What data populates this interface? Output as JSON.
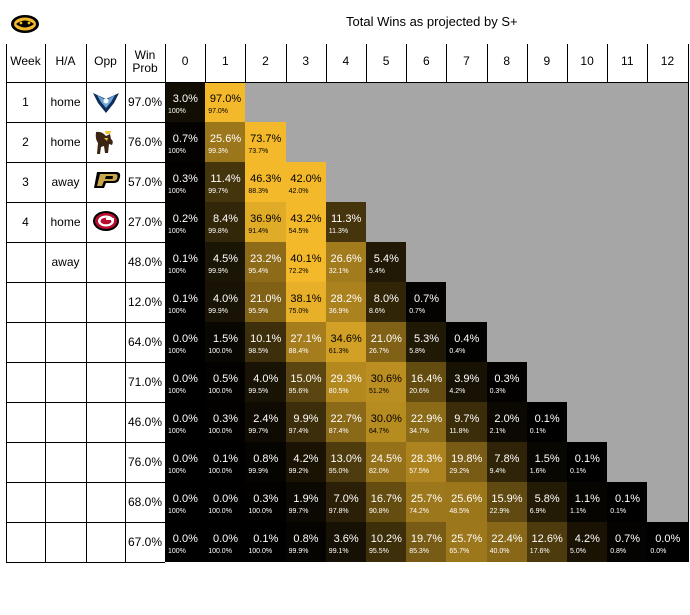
{
  "title": "Total Wins as projected by S+",
  "logo_icon": "mizzou-tiger-logo-icon",
  "colors": {
    "max": "#f3b92a",
    "min": "#000000",
    "gray": "#a6a6a6",
    "border": "#000000"
  },
  "headers": {
    "week": "Week",
    "ha": "H/A",
    "opp": "Opp",
    "winprob": [
      "Win",
      "Prob"
    ]
  },
  "win_counts": [
    "0",
    "1",
    "2",
    "3",
    "4",
    "5",
    "6",
    "7",
    "8",
    "9",
    "10",
    "11",
    "12"
  ],
  "chart_data": {
    "type": "heatmap",
    "title": "Total Wins as projected by S+",
    "x": [
      0,
      1,
      2,
      3,
      4,
      5,
      6,
      7,
      8,
      9,
      10,
      11,
      12
    ],
    "rows": [
      {
        "week": "1",
        "ha": "home",
        "opp_icon": "ut-martin-skyhawks-logo-icon",
        "win_prob": "97.0%",
        "dist": [
          "3.0%",
          "97.0%"
        ],
        "cum": [
          "100%",
          "97.0%"
        ]
      },
      {
        "week": "2",
        "ha": "home",
        "opp_icon": "wyoming-cowboys-logo-icon",
        "win_prob": "76.0%",
        "dist": [
          "0.7%",
          "25.6%",
          "73.7%"
        ],
        "cum": [
          "100%",
          "99.3%",
          "73.7%"
        ]
      },
      {
        "week": "3",
        "ha": "away",
        "opp_icon": "purdue-p-logo-icon",
        "win_prob": "57.0%",
        "dist": [
          "0.3%",
          "11.4%",
          "46.3%",
          "42.0%"
        ],
        "cum": [
          "100%",
          "99.7%",
          "88.3%",
          "42.0%"
        ]
      },
      {
        "week": "4",
        "ha": "home",
        "opp_icon": "georgia-g-logo-icon",
        "win_prob": "27.0%",
        "dist": [
          "0.2%",
          "8.4%",
          "36.9%",
          "43.2%",
          "11.3%"
        ],
        "cum": [
          "100%",
          "99.8%",
          "91.4%",
          "54.5%",
          "11.3%"
        ]
      },
      {
        "week": "",
        "ha": "away",
        "opp_icon": "",
        "win_prob": "48.0%",
        "dist": [
          "0.1%",
          "4.5%",
          "23.2%",
          "40.1%",
          "26.6%",
          "5.4%"
        ],
        "cum": [
          "100%",
          "99.9%",
          "95.4%",
          "72.2%",
          "32.1%",
          "5.4%"
        ]
      },
      {
        "week": "",
        "ha": "",
        "opp_icon": "",
        "win_prob": "12.0%",
        "dist": [
          "0.1%",
          "4.0%",
          "21.0%",
          "38.1%",
          "28.2%",
          "8.0%",
          "0.7%"
        ],
        "cum": [
          "100%",
          "99.9%",
          "95.9%",
          "75.0%",
          "36.9%",
          "8.6%",
          "0.7%"
        ]
      },
      {
        "week": "",
        "ha": "",
        "opp_icon": "",
        "win_prob": "64.0%",
        "dist": [
          "0.0%",
          "1.5%",
          "10.1%",
          "27.1%",
          "34.6%",
          "21.0%",
          "5.3%",
          "0.4%"
        ],
        "cum": [
          "100%",
          "100.0%",
          "98.5%",
          "88.4%",
          "61.3%",
          "26.7%",
          "5.8%",
          "0.4%"
        ]
      },
      {
        "week": "",
        "ha": "",
        "opp_icon": "",
        "win_prob": "71.0%",
        "dist": [
          "0.0%",
          "0.5%",
          "4.0%",
          "15.0%",
          "29.3%",
          "30.6%",
          "16.4%",
          "3.9%",
          "0.3%"
        ],
        "cum": [
          "100%",
          "100.0%",
          "99.5%",
          "95.6%",
          "80.5%",
          "51.2%",
          "20.6%",
          "4.2%",
          "0.3%"
        ]
      },
      {
        "week": "",
        "ha": "",
        "opp_icon": "",
        "win_prob": "46.0%",
        "dist": [
          "0.0%",
          "0.3%",
          "2.4%",
          "9.9%",
          "22.7%",
          "30.0%",
          "22.9%",
          "9.7%",
          "2.0%",
          "0.1%"
        ],
        "cum": [
          "100%",
          "100.0%",
          "99.7%",
          "97.4%",
          "87.4%",
          "64.7%",
          "34.7%",
          "11.8%",
          "2.1%",
          "0.1%"
        ]
      },
      {
        "week": "",
        "ha": "",
        "opp_icon": "",
        "win_prob": "76.0%",
        "dist": [
          "0.0%",
          "0.1%",
          "0.8%",
          "4.2%",
          "13.0%",
          "24.5%",
          "28.3%",
          "19.8%",
          "7.8%",
          "1.5%",
          "0.1%"
        ],
        "cum": [
          "100%",
          "100.0%",
          "99.9%",
          "99.2%",
          "95.0%",
          "82.0%",
          "57.5%",
          "29.2%",
          "9.4%",
          "1.6%",
          "0.1%"
        ]
      },
      {
        "week": "",
        "ha": "",
        "opp_icon": "",
        "win_prob": "68.0%",
        "dist": [
          "0.0%",
          "0.0%",
          "0.3%",
          "1.9%",
          "7.0%",
          "16.7%",
          "25.7%",
          "25.6%",
          "15.9%",
          "5.8%",
          "1.1%",
          "0.1%"
        ],
        "cum": [
          "100%",
          "100.0%",
          "100.0%",
          "99.7%",
          "97.8%",
          "90.8%",
          "74.2%",
          "48.5%",
          "22.9%",
          "6.9%",
          "1.1%",
          "0.1%"
        ]
      },
      {
        "week": "",
        "ha": "",
        "opp_icon": "",
        "win_prob": "67.0%",
        "dist": [
          "0.0%",
          "0.0%",
          "0.1%",
          "0.8%",
          "3.6%",
          "10.2%",
          "19.7%",
          "25.7%",
          "22.4%",
          "12.6%",
          "4.2%",
          "0.7%",
          "0.0%"
        ],
        "cum": [
          "100%",
          "100.0%",
          "100.0%",
          "99.9%",
          "99.1%",
          "95.5%",
          "85.3%",
          "65.7%",
          "40.0%",
          "17.6%",
          "5.0%",
          "0.8%",
          "0.0%"
        ]
      }
    ]
  }
}
